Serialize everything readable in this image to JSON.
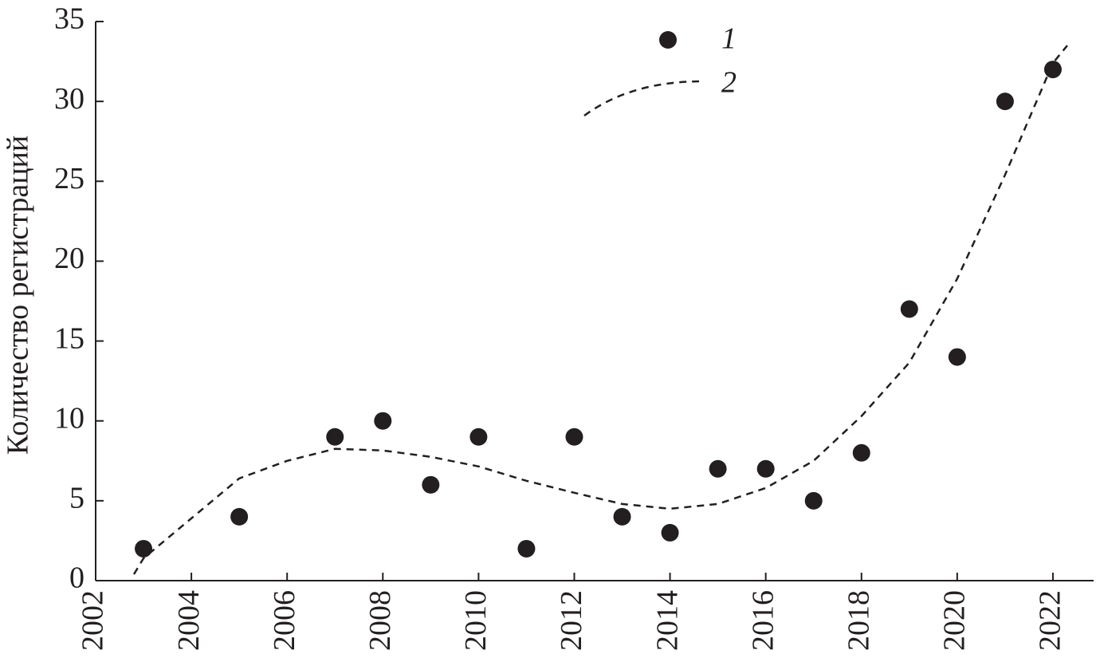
{
  "chart_data": {
    "type": "scatter",
    "y_label": "Количество регистраций",
    "xlim": [
      2002,
      2022.85
    ],
    "ylim": [
      0,
      35
    ],
    "xticks": [
      2002,
      2004,
      2006,
      2008,
      2010,
      2012,
      2014,
      2016,
      2018,
      2020,
      2022
    ],
    "yticks": [
      0,
      5,
      10,
      15,
      20,
      25,
      30,
      35
    ],
    "grid": false,
    "legend": "top",
    "series": [
      {
        "name": "1",
        "type": "scatter",
        "color": "#231f20",
        "x": [
          2003,
          2005,
          2007,
          2008,
          2009,
          2010,
          2011,
          2012,
          2013,
          2014,
          2015,
          2016,
          2017,
          2018,
          2019,
          2020,
          2021,
          2022
        ],
        "values": [
          2,
          4,
          9,
          10,
          6,
          9,
          2,
          9,
          4,
          3,
          7,
          7,
          5,
          8,
          17,
          14,
          30,
          32
        ]
      },
      {
        "name": "2",
        "type": "line",
        "color": "#231f20",
        "dashed": true,
        "x": [
          2002.8,
          2003,
          2004,
          2005,
          2006,
          2007,
          2008,
          2009,
          2010,
          2011,
          2012,
          2013,
          2014,
          2015,
          2016,
          2017,
          2018,
          2019,
          2020,
          2021,
          2022,
          2022.3
        ],
        "values": [
          0.4,
          1.4,
          3.9,
          6.4,
          7.5,
          8.25,
          8.15,
          7.75,
          7.15,
          6.25,
          5.5,
          4.8,
          4.5,
          4.8,
          5.8,
          7.5,
          10.3,
          13.65,
          18.9,
          25.4,
          32.4,
          33.5
        ]
      }
    ]
  }
}
